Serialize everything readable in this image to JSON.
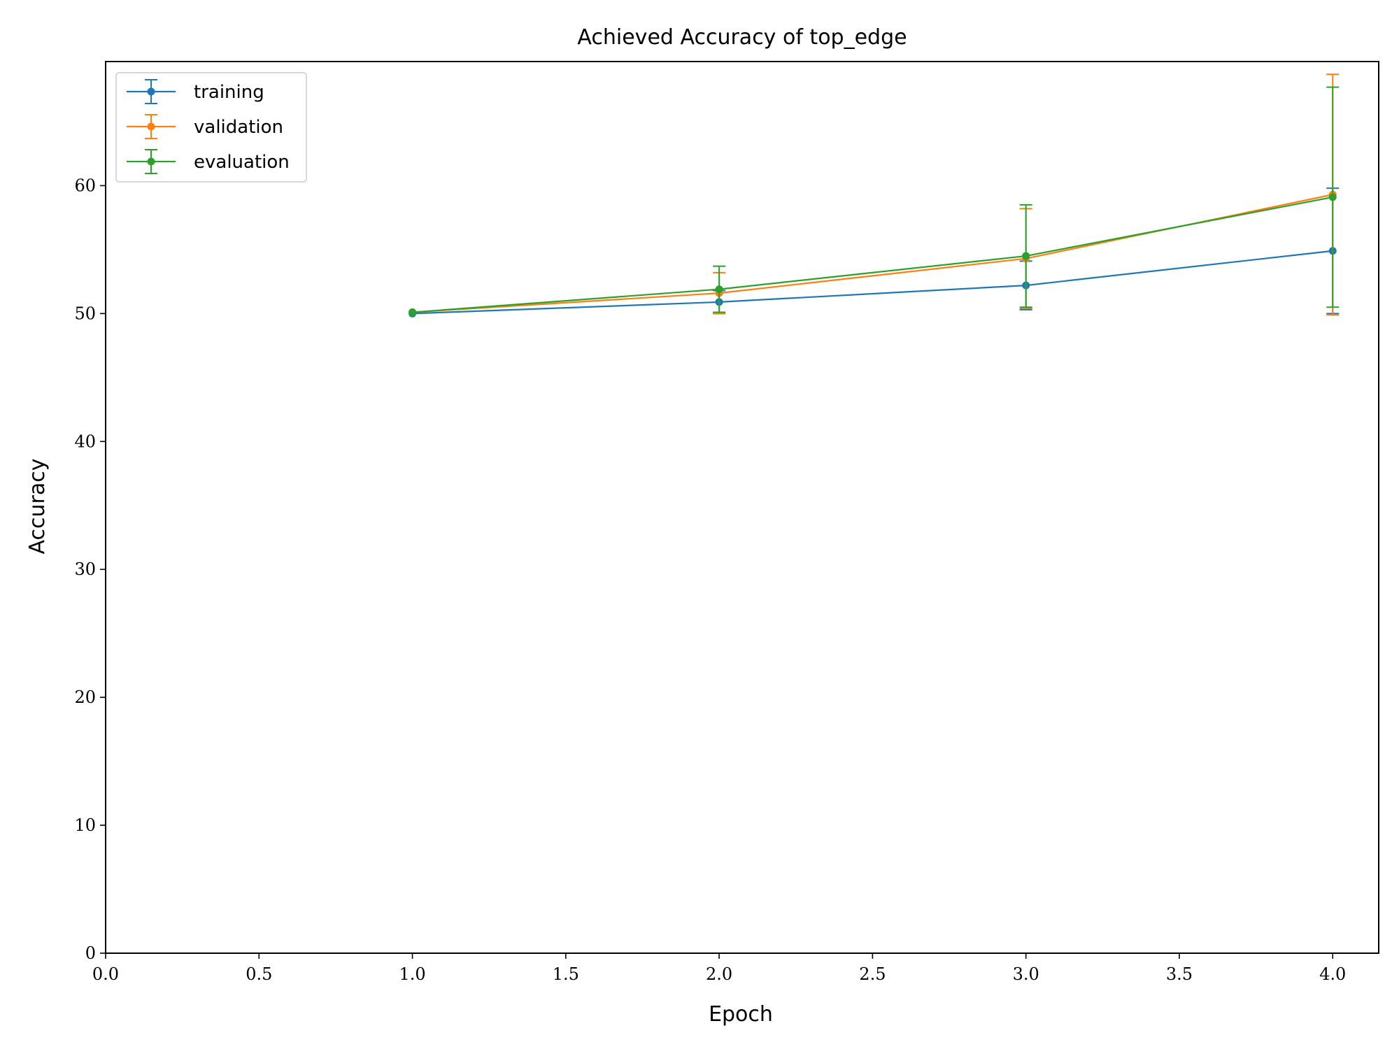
{
  "chart_data": {
    "type": "line",
    "title": "Achieved Accuracy of top_edge",
    "xlabel": "Epoch",
    "ylabel": "Accuracy",
    "xlim": [
      0.0,
      4.15
    ],
    "ylim": [
      0,
      69.7
    ],
    "xticks": [
      0.0,
      0.5,
      1.0,
      1.5,
      2.0,
      2.5,
      3.0,
      3.5,
      4.0
    ],
    "xtick_labels": [
      "0.0",
      "0.5",
      "1.0",
      "1.5",
      "2.0",
      "2.5",
      "3.0",
      "3.5",
      "4.0"
    ],
    "yticks": [
      0,
      10,
      20,
      30,
      40,
      50,
      60
    ],
    "ytick_labels": [
      "0",
      "10",
      "20",
      "30",
      "40",
      "50",
      "60"
    ],
    "grid": false,
    "legend_position": "upper-left",
    "x": [
      1,
      2,
      3,
      4
    ],
    "series": [
      {
        "name": "training",
        "color": "#1f77b4",
        "values": [
          50.0,
          50.9,
          52.2,
          54.9
        ],
        "errors": [
          0.0,
          0.9,
          1.9,
          4.9
        ]
      },
      {
        "name": "validation",
        "color": "#ff7f0e",
        "values": [
          50.1,
          51.6,
          54.3,
          59.3
        ],
        "errors": [
          0.0,
          1.6,
          3.9,
          9.4
        ]
      },
      {
        "name": "evaluation",
        "color": "#2ca02c",
        "values": [
          50.1,
          51.9,
          54.5,
          59.1
        ],
        "errors": [
          0.0,
          1.8,
          4.0,
          8.6
        ]
      }
    ]
  }
}
